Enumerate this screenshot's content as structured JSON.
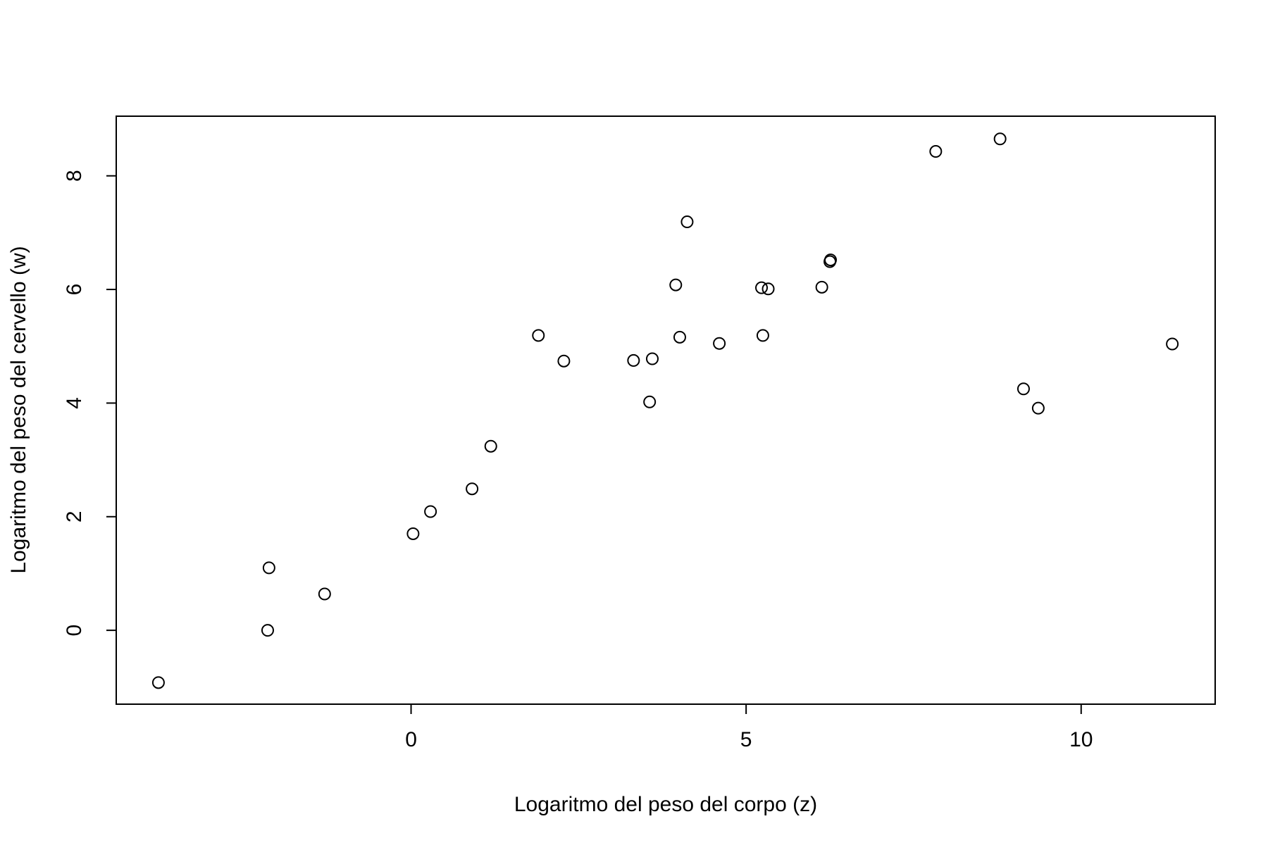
{
  "chart_data": {
    "type": "scatter",
    "title": "",
    "xlabel": "Logaritmo del peso del corpo (z)",
    "ylabel": "Logaritmo del peso del cervello (w)",
    "xlim": [
      -4.4,
      12.0
    ],
    "ylim": [
      -1.3,
      9.05
    ],
    "xticks": [
      0,
      5,
      10
    ],
    "yticks": [
      0,
      2,
      4,
      6,
      8
    ],
    "grid": false,
    "legend": "none",
    "marker": "open-circle",
    "colors": {
      "points": "#000000",
      "axes": "#000000",
      "background": "#ffffff"
    },
    "points": [
      {
        "x": -3.77,
        "y": -0.92
      },
      {
        "x": -2.12,
        "y": 1.1
      },
      {
        "x": -2.14,
        "y": 0.0
      },
      {
        "x": -1.29,
        "y": 0.64
      },
      {
        "x": 0.03,
        "y": 1.7
      },
      {
        "x": 0.29,
        "y": 2.09
      },
      {
        "x": 0.91,
        "y": 2.49
      },
      {
        "x": 1.19,
        "y": 3.24
      },
      {
        "x": 1.9,
        "y": 5.19
      },
      {
        "x": 2.28,
        "y": 4.74
      },
      {
        "x": 3.32,
        "y": 4.75
      },
      {
        "x": 3.56,
        "y": 4.02
      },
      {
        "x": 3.6,
        "y": 4.78
      },
      {
        "x": 3.95,
        "y": 6.08
      },
      {
        "x": 4.01,
        "y": 5.16
      },
      {
        "x": 4.12,
        "y": 7.19
      },
      {
        "x": 4.6,
        "y": 5.05
      },
      {
        "x": 5.23,
        "y": 6.03
      },
      {
        "x": 5.25,
        "y": 5.19
      },
      {
        "x": 5.33,
        "y": 6.01
      },
      {
        "x": 6.13,
        "y": 6.04
      },
      {
        "x": 6.25,
        "y": 6.49
      },
      {
        "x": 6.26,
        "y": 6.52
      },
      {
        "x": 7.83,
        "y": 8.43
      },
      {
        "x": 8.79,
        "y": 8.65
      },
      {
        "x": 9.14,
        "y": 4.25
      },
      {
        "x": 9.36,
        "y": 3.91
      },
      {
        "x": 11.36,
        "y": 5.04
      }
    ]
  }
}
